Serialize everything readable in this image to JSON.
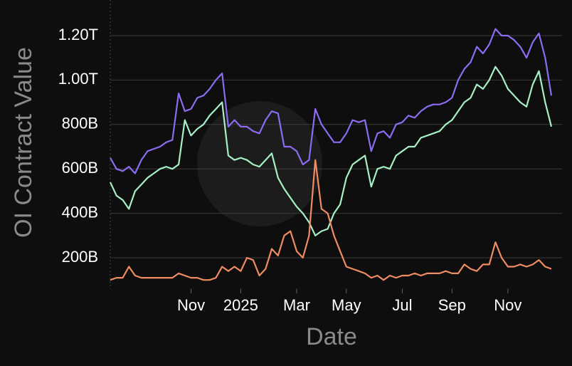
{
  "chart_data": {
    "type": "line",
    "xlabel": "Date",
    "ylabel": "OI Contract Value",
    "categories": [
      null,
      null,
      null,
      null,
      null,
      null,
      null,
      null,
      null,
      null,
      null,
      null,
      null,
      "Nov",
      null,
      null,
      null,
      null,
      null,
      null,
      null,
      "2025",
      null,
      null,
      null,
      null,
      null,
      null,
      null,
      null,
      "Mar",
      null,
      null,
      null,
      null,
      null,
      null,
      null,
      "May",
      null,
      null,
      null,
      null,
      null,
      null,
      null,
      null,
      "Jul",
      null,
      null,
      null,
      null,
      null,
      null,
      null,
      "Sep",
      null,
      null,
      null,
      null,
      null,
      null,
      null,
      null,
      "Nov",
      null,
      null,
      null,
      null,
      null,
      null,
      null
    ],
    "series": [
      {
        "color": "#8c6cf0",
        "values": [
          650,
          600,
          590,
          610,
          580,
          640,
          680,
          690,
          700,
          720,
          730,
          940,
          860,
          870,
          920,
          930,
          960,
          1000,
          1030,
          790,
          820,
          790,
          790,
          770,
          760,
          820,
          860,
          850,
          700,
          700,
          680,
          620,
          640,
          870,
          800,
          760,
          720,
          720,
          760,
          820,
          810,
          820,
          680,
          760,
          770,
          740,
          800,
          810,
          840,
          830,
          860,
          880,
          890,
          890,
          900,
          920,
          1000,
          1050,
          1080,
          1150,
          1120,
          1160,
          1230,
          1200,
          1200,
          1180,
          1150,
          1100,
          1170,
          1210,
          1100,
          930
        ]
      },
      {
        "color": "#a6f0c6",
        "values": [
          540,
          480,
          460,
          420,
          500,
          530,
          560,
          580,
          600,
          610,
          600,
          620,
          820,
          750,
          780,
          800,
          840,
          870,
          900,
          660,
          640,
          650,
          640,
          620,
          610,
          640,
          670,
          560,
          510,
          470,
          430,
          400,
          360,
          300,
          320,
          330,
          400,
          440,
          560,
          620,
          640,
          660,
          520,
          600,
          610,
          600,
          660,
          680,
          700,
          700,
          740,
          750,
          760,
          770,
          800,
          820,
          860,
          900,
          920,
          980,
          960,
          1000,
          1060,
          1020,
          960,
          930,
          900,
          880,
          980,
          1040,
          900,
          790
        ]
      },
      {
        "color": "#f08c64",
        "values": [
          100,
          110,
          110,
          160,
          120,
          110,
          110,
          110,
          110,
          110,
          110,
          130,
          120,
          110,
          110,
          100,
          100,
          110,
          160,
          140,
          160,
          140,
          200,
          190,
          120,
          150,
          240,
          210,
          300,
          320,
          230,
          200,
          300,
          640,
          420,
          400,
          300,
          230,
          160,
          150,
          140,
          130,
          110,
          120,
          100,
          120,
          110,
          120,
          120,
          130,
          120,
          130,
          130,
          130,
          140,
          130,
          130,
          170,
          150,
          140,
          170,
          170,
          270,
          200,
          160,
          160,
          170,
          160,
          170,
          190,
          160,
          150
        ]
      }
    ],
    "ylim": [
      60,
      1300
    ],
    "yticks": [
      {
        "value": 200,
        "label": "200B"
      },
      {
        "value": 400,
        "label": "400B"
      },
      {
        "value": 600,
        "label": "600B"
      },
      {
        "value": 800,
        "label": "800B"
      },
      {
        "value": 1000,
        "label": "1.00T"
      },
      {
        "value": 1200,
        "label": "1.20T"
      }
    ],
    "grid": true
  }
}
